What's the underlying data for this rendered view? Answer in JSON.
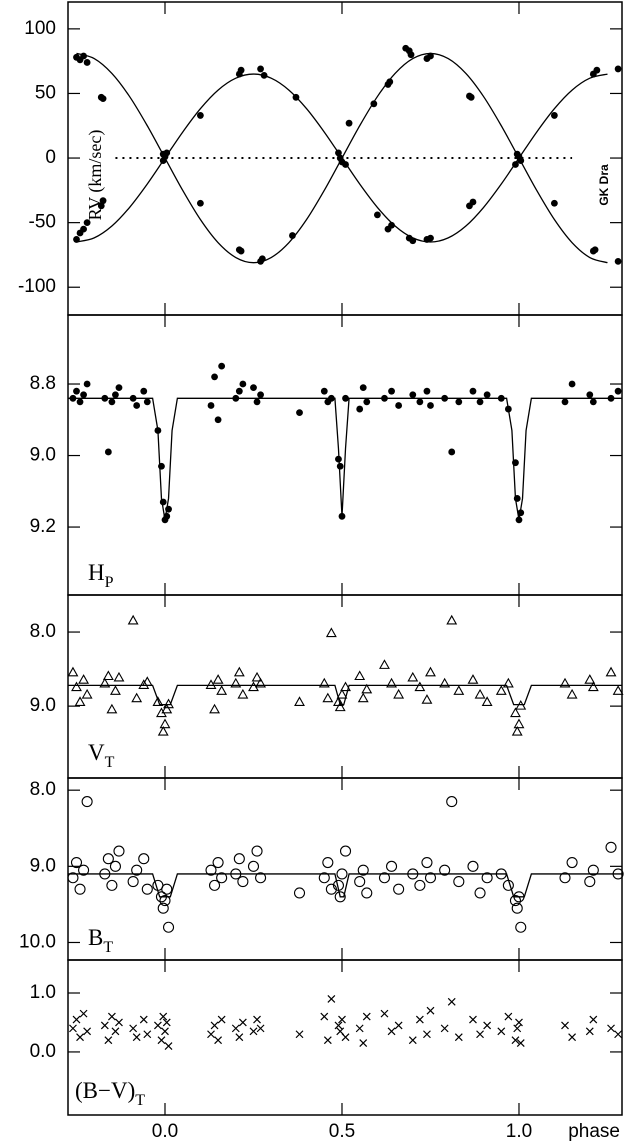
{
  "chart_data": [
    {
      "type": "scatter",
      "ylabel": "RV (km/sec)",
      "annotation": "GK Dra",
      "marker": "dot",
      "xlim": [
        -0.274,
        1.291
      ],
      "xticks": [
        0,
        0.5,
        1
      ],
      "ylim": [
        -121.5,
        120.8
      ],
      "yticks": [
        -100,
        -50,
        0,
        50,
        100
      ],
      "x": [
        -0.25,
        -0.24,
        -0.23,
        -0.22,
        -0.25,
        -0.24,
        -0.23,
        -0.22,
        -0.18,
        -0.175,
        -0.18,
        -0.175,
        -0.005,
        0.0,
        0.005,
        -0.005,
        0.1,
        0.1,
        0.21,
        0.215,
        0.21,
        0.215,
        0.27,
        0.275,
        0.27,
        0.28,
        0.36,
        0.37,
        0.49,
        0.495,
        0.5,
        0.51,
        0.52,
        0.59,
        0.6,
        0.63,
        0.635,
        0.63,
        0.64,
        0.68,
        0.69,
        0.695,
        0.69,
        0.7,
        0.74,
        0.75,
        0.74,
        0.75,
        0.86,
        0.865,
        0.86,
        0.87,
        0.995,
        1.0,
        1.005,
        0.99,
        1.1,
        1.1,
        1.21,
        1.215,
        1.21,
        1.22,
        1.28,
        1.28
      ],
      "values": [
        78,
        76,
        79,
        74,
        -63,
        -58,
        -55,
        -50,
        47,
        46,
        -37,
        -33,
        3,
        1,
        4,
        -2,
        -35,
        33,
        -71,
        -72,
        65,
        68,
        -80,
        -78,
        69,
        64,
        -60,
        47,
        4,
        0,
        -3,
        -5,
        27,
        42,
        -44,
        57,
        59,
        -55,
        -52,
        85,
        83,
        80,
        -62,
        -64,
        77,
        79,
        -63,
        -62,
        48,
        47,
        -37,
        -34,
        3,
        1,
        -2,
        -5,
        -35,
        33,
        -72,
        -71,
        65,
        68,
        -80,
        69
      ],
      "reference_line": {
        "x": [
          -0.14,
          1.15
        ],
        "value": 0
      },
      "smooth": true,
      "models": [
        {
          "x": [
            -0.25,
            -0.2,
            -0.15,
            -0.1,
            -0.05,
            0,
            0.05,
            0.1,
            0.15,
            0.2,
            0.25,
            0.3,
            0.35,
            0.4,
            0.45,
            0.5,
            0.55,
            0.6,
            0.65,
            0.7,
            0.75,
            0.8,
            0.85,
            0.9,
            0.95,
            1,
            1.05,
            1.1,
            1.15,
            1.2,
            1.25
          ],
          "values": [
            81,
            77,
            65.5,
            47.6,
            25,
            0,
            -25,
            -47.6,
            -65.5,
            -77,
            -81,
            -77,
            -65.5,
            -47.6,
            -25,
            0,
            25,
            47.6,
            65.5,
            77,
            81,
            77,
            65.5,
            47.6,
            25,
            0,
            -25,
            -47.6,
            -65.5,
            -77,
            -81
          ]
        },
        {
          "x": [
            -0.25,
            -0.2,
            -0.15,
            -0.1,
            -0.05,
            0,
            0.05,
            0.1,
            0.15,
            0.2,
            0.25,
            0.3,
            0.35,
            0.4,
            0.45,
            0.5,
            0.55,
            0.6,
            0.65,
            0.7,
            0.75,
            0.8,
            0.85,
            0.9,
            0.95,
            1,
            1.05,
            1.1,
            1.15,
            1.2,
            1.25
          ],
          "values": [
            -65,
            -61.8,
            -52.6,
            -38.2,
            -20.1,
            0,
            20.1,
            38.2,
            52.6,
            61.8,
            65,
            61.8,
            52.6,
            38.2,
            20.1,
            0,
            -20.1,
            -38.2,
            -52.6,
            -61.8,
            -65,
            -61.8,
            -52.6,
            -38.2,
            -20.1,
            0,
            20.1,
            38.2,
            52.6,
            61.8,
            65
          ]
        }
      ]
    },
    {
      "type": "scatter",
      "ylabel": "H",
      "ylabel_sub": "P",
      "marker": "dot",
      "xlim": [
        -0.274,
        1.291
      ],
      "xticks": [
        0,
        0.5,
        1
      ],
      "ylim": [
        9.39,
        8.607
      ],
      "yticks": [
        8.8,
        {
          "value": 9.0,
          "label": "9.0"
        },
        9.2
      ],
      "x": [
        -0.26,
        -0.25,
        -0.24,
        -0.23,
        -0.22,
        -0.17,
        -0.16,
        -0.15,
        -0.14,
        -0.13,
        -0.09,
        -0.08,
        -0.06,
        -0.05,
        -0.02,
        -0.01,
        -0.005,
        0.0,
        0.005,
        0.01,
        0.13,
        0.14,
        0.15,
        0.16,
        0.2,
        0.21,
        0.22,
        0.25,
        0.26,
        0.27,
        0.38,
        0.45,
        0.46,
        0.47,
        0.49,
        0.495,
        0.5,
        0.51,
        0.55,
        0.56,
        0.57,
        0.62,
        0.64,
        0.66,
        0.7,
        0.72,
        0.74,
        0.75,
        0.79,
        0.81,
        0.83,
        0.87,
        0.89,
        0.91,
        0.95,
        0.97,
        0.99,
        0.995,
        1.0,
        1.005,
        1.13,
        1.15,
        1.2,
        1.21,
        1.26,
        1.28
      ],
      "values": [
        8.84,
        8.82,
        8.85,
        8.83,
        8.8,
        8.84,
        8.99,
        8.85,
        8.83,
        8.81,
        8.84,
        8.86,
        8.82,
        8.85,
        8.93,
        9.03,
        9.13,
        9.18,
        9.17,
        9.15,
        8.86,
        8.78,
        8.9,
        8.75,
        8.84,
        8.82,
        8.8,
        8.81,
        8.85,
        8.83,
        8.88,
        8.82,
        8.85,
        8.84,
        9.01,
        9.03,
        9.17,
        8.84,
        8.87,
        8.81,
        8.85,
        8.84,
        8.82,
        8.86,
        8.83,
        8.85,
        8.82,
        8.86,
        8.84,
        8.99,
        8.85,
        8.82,
        8.85,
        8.83,
        8.84,
        8.87,
        9.02,
        9.12,
        9.18,
        9.16,
        8.85,
        8.8,
        8.83,
        8.85,
        8.84,
        8.82
      ],
      "models": [
        {
          "x": [
            -0.274,
            -0.035,
            -0.02,
            -0.01,
            0,
            0.01,
            0.02,
            0.035,
            0.48,
            0.49,
            0.5,
            0.51,
            0.52,
            0.965,
            0.98,
            0.99,
            1.0,
            1.01,
            1.02,
            1.035,
            1.291
          ],
          "values": [
            8.84,
            8.84,
            8.93,
            9.12,
            9.18,
            9.12,
            8.93,
            8.84,
            8.84,
            8.98,
            9.17,
            8.98,
            8.84,
            8.84,
            8.93,
            9.12,
            9.18,
            9.12,
            8.93,
            8.84,
            8.84
          ]
        }
      ]
    },
    {
      "type": "scatter",
      "ylabel": "V",
      "ylabel_sub": "T",
      "marker": "triangle",
      "xlim": [
        -0.274,
        1.291
      ],
      "xticks": [
        0,
        0.5,
        1
      ],
      "ylim": [
        9.97,
        7.5
      ],
      "yticks": [
        {
          "value": 8.0,
          "label": "8.0"
        },
        {
          "value": 9.0,
          "label": "9.0"
        }
      ],
      "x": [
        -0.26,
        -0.25,
        -0.24,
        -0.23,
        -0.22,
        -0.17,
        -0.16,
        -0.15,
        -0.14,
        -0.13,
        -0.09,
        -0.08,
        -0.06,
        -0.05,
        -0.02,
        -0.01,
        -0.005,
        0.0,
        0.005,
        0.01,
        0.13,
        0.14,
        0.15,
        0.16,
        0.2,
        0.21,
        0.22,
        0.25,
        0.26,
        0.27,
        0.38,
        0.45,
        0.46,
        0.47,
        0.49,
        0.495,
        0.5,
        0.51,
        0.55,
        0.56,
        0.57,
        0.62,
        0.64,
        0.66,
        0.7,
        0.72,
        0.74,
        0.75,
        0.79,
        0.81,
        0.83,
        0.87,
        0.89,
        0.91,
        0.95,
        0.97,
        0.99,
        0.995,
        1.0,
        1.005,
        1.13,
        1.15,
        1.2,
        1.21,
        1.26,
        1.28
      ],
      "values": [
        8.55,
        8.75,
        8.95,
        8.65,
        8.85,
        8.7,
        8.6,
        9.05,
        8.8,
        8.62,
        7.85,
        8.9,
        8.72,
        8.68,
        8.95,
        9.1,
        9.35,
        9.25,
        9.05,
        8.98,
        8.72,
        9.05,
        8.65,
        8.8,
        8.7,
        8.55,
        8.85,
        8.75,
        8.62,
        8.7,
        8.95,
        8.7,
        8.9,
        8.02,
        8.95,
        9.02,
        8.85,
        8.75,
        8.6,
        8.9,
        8.78,
        8.45,
        8.7,
        8.85,
        8.62,
        8.75,
        8.92,
        8.55,
        8.7,
        7.85,
        8.8,
        8.65,
        8.85,
        8.95,
        8.8,
        8.7,
        9.1,
        9.35,
        9.25,
        9.0,
        8.7,
        8.85,
        8.65,
        8.75,
        8.55,
        8.8
      ],
      "models": [
        {
          "x": [
            -0.274,
            -0.035,
            -0.015,
            0.015,
            0.035,
            0.48,
            0.495,
            0.505,
            0.52,
            0.965,
            0.985,
            1.015,
            1.035,
            1.291
          ],
          "values": [
            8.72,
            8.72,
            8.98,
            8.98,
            8.72,
            8.72,
            8.98,
            8.98,
            8.72,
            8.72,
            8.98,
            8.98,
            8.72,
            8.72
          ]
        }
      ]
    },
    {
      "type": "scatter",
      "ylabel": "B",
      "ylabel_sub": "T",
      "marker": "circle",
      "xlim": [
        -0.274,
        1.291
      ],
      "xticks": [
        0,
        0.5,
        1
      ],
      "ylim": [
        10.23,
        7.84
      ],
      "yticks": [
        {
          "value": 8.0,
          "label": "8.0"
        },
        {
          "value": 9.0,
          "label": "9.0"
        },
        {
          "value": 10.0,
          "label": "10.0"
        }
      ],
      "x": [
        -0.26,
        -0.25,
        -0.24,
        -0.23,
        -0.22,
        -0.17,
        -0.16,
        -0.15,
        -0.14,
        -0.13,
        -0.09,
        -0.08,
        -0.06,
        -0.05,
        -0.02,
        -0.01,
        -0.005,
        0.0,
        0.005,
        0.01,
        0.13,
        0.14,
        0.15,
        0.16,
        0.2,
        0.21,
        0.22,
        0.25,
        0.26,
        0.27,
        0.38,
        0.45,
        0.46,
        0.47,
        0.49,
        0.495,
        0.5,
        0.51,
        0.55,
        0.56,
        0.57,
        0.62,
        0.64,
        0.66,
        0.7,
        0.72,
        0.74,
        0.75,
        0.79,
        0.81,
        0.83,
        0.87,
        0.89,
        0.91,
        0.95,
        0.97,
        0.99,
        0.995,
        1.0,
        1.005,
        1.13,
        1.15,
        1.2,
        1.21,
        1.26,
        1.28
      ],
      "values": [
        9.15,
        8.95,
        9.3,
        9.05,
        8.15,
        9.1,
        8.9,
        9.25,
        9.0,
        8.8,
        9.2,
        9.05,
        8.9,
        9.3,
        9.25,
        9.4,
        9.55,
        9.45,
        9.3,
        9.8,
        9.05,
        9.25,
        8.95,
        9.15,
        9.1,
        8.9,
        9.2,
        9.0,
        8.8,
        9.15,
        9.35,
        9.15,
        8.95,
        9.3,
        9.25,
        9.4,
        9.1,
        8.8,
        9.2,
        9.05,
        9.35,
        9.15,
        9.0,
        9.3,
        9.1,
        9.25,
        8.95,
        9.15,
        9.05,
        8.15,
        9.2,
        9.0,
        9.35,
        9.15,
        9.1,
        9.25,
        9.45,
        9.55,
        9.4,
        9.8,
        9.15,
        8.95,
        9.2,
        9.05,
        8.75,
        9.1
      ],
      "models": [
        {
          "x": [
            -0.274,
            -0.035,
            -0.015,
            0.015,
            0.035,
            0.48,
            0.495,
            0.505,
            0.52,
            0.965,
            0.985,
            1.015,
            1.035,
            1.291
          ],
          "values": [
            9.1,
            9.1,
            9.4,
            9.4,
            9.1,
            9.1,
            9.4,
            9.4,
            9.1,
            9.1,
            9.4,
            9.4,
            9.1,
            9.1
          ]
        }
      ]
    },
    {
      "type": "scatter",
      "ylabel": "(B−V)",
      "ylabel_sub": "T",
      "marker": "cross",
      "xlabel": "phase",
      "xlim": [
        -0.274,
        1.291
      ],
      "xticks": [
        {
          "value": 0,
          "label": "0.0"
        },
        {
          "value": 0.5,
          "label": "0.5"
        },
        {
          "value": 1,
          "label": "1.0"
        }
      ],
      "ylim": [
        -1.07,
        1.56
      ],
      "yticks": [
        {
          "value": 0.0,
          "label": "0.0"
        },
        {
          "value": 1.0,
          "label": "1.0"
        }
      ],
      "x": [
        -0.26,
        -0.25,
        -0.24,
        -0.23,
        -0.22,
        -0.17,
        -0.16,
        -0.15,
        -0.14,
        -0.13,
        -0.09,
        -0.08,
        -0.06,
        -0.05,
        -0.02,
        -0.01,
        -0.005,
        0.0,
        0.005,
        0.01,
        0.13,
        0.14,
        0.15,
        0.16,
        0.2,
        0.21,
        0.22,
        0.25,
        0.26,
        0.27,
        0.38,
        0.45,
        0.46,
        0.47,
        0.49,
        0.495,
        0.5,
        0.51,
        0.55,
        0.56,
        0.57,
        0.62,
        0.64,
        0.66,
        0.7,
        0.72,
        0.74,
        0.75,
        0.79,
        0.81,
        0.83,
        0.87,
        0.89,
        0.91,
        0.95,
        0.97,
        0.99,
        0.995,
        1.0,
        1.005,
        1.13,
        1.15,
        1.2,
        1.21,
        1.26,
        1.28
      ],
      "values": [
        0.4,
        0.55,
        0.25,
        0.65,
        0.35,
        0.45,
        0.2,
        0.6,
        0.35,
        0.5,
        0.4,
        0.25,
        0.55,
        0.3,
        0.45,
        0.2,
        0.6,
        0.35,
        0.5,
        0.1,
        0.3,
        0.45,
        0.2,
        0.55,
        0.4,
        0.25,
        0.5,
        0.35,
        0.55,
        0.4,
        0.3,
        0.6,
        0.2,
        0.9,
        0.45,
        0.35,
        0.55,
        0.25,
        0.4,
        0.15,
        0.6,
        0.65,
        0.35,
        0.45,
        0.2,
        0.55,
        0.3,
        0.7,
        0.4,
        0.85,
        0.25,
        0.55,
        0.3,
        0.45,
        0.35,
        0.6,
        0.2,
        0.4,
        0.5,
        0.15,
        0.45,
        0.25,
        0.35,
        0.55,
        0.4,
        0.3
      ]
    }
  ]
}
